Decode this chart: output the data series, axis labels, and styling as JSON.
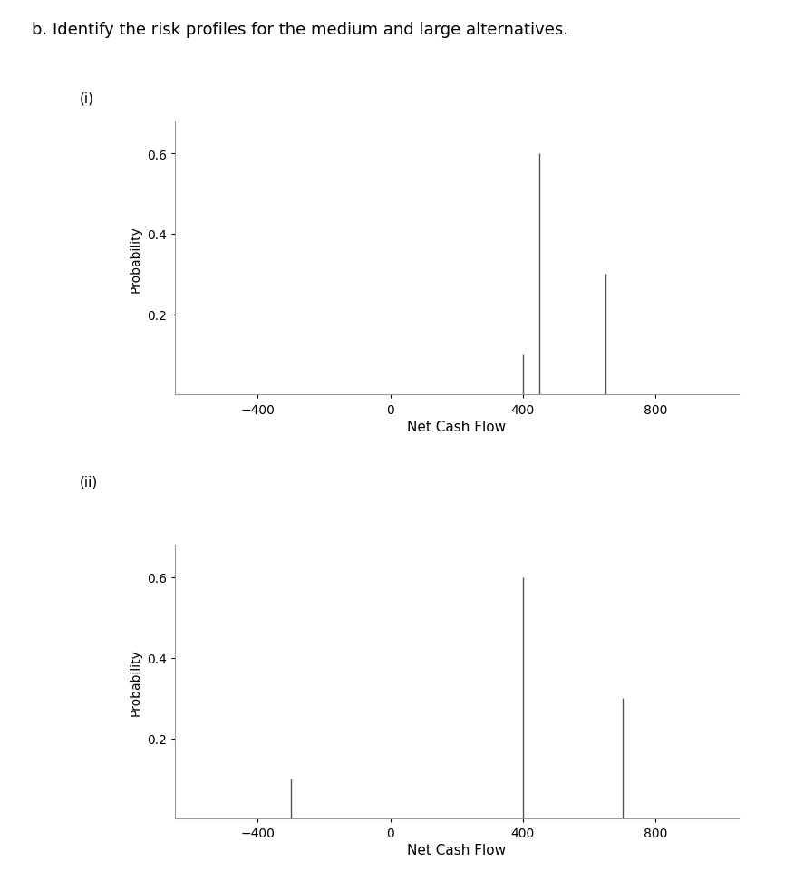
{
  "title": "b. Identify the risk profiles for the medium and large alternatives.",
  "chart_i_label": "(i)",
  "chart_ii_label": "(ii)",
  "chart_i": {
    "x_values": [
      400,
      450,
      650
    ],
    "probabilities": [
      0.1,
      0.6,
      0.3
    ],
    "xlabel": "Net Cash Flow",
    "ylabel": "Probability",
    "xlim": [
      -650,
      1050
    ],
    "ylim": [
      0,
      0.68
    ],
    "xticks": [
      -400,
      0,
      400,
      800
    ],
    "yticks": [
      0.2,
      0.4,
      0.6
    ]
  },
  "chart_ii": {
    "x_values": [
      -300,
      400,
      700
    ],
    "probabilities": [
      0.1,
      0.6,
      0.3
    ],
    "xlabel": "Net Cash Flow",
    "ylabel": "Probability",
    "xlim": [
      -650,
      1050
    ],
    "ylim": [
      0,
      0.68
    ],
    "xticks": [
      -400,
      0,
      400,
      800
    ],
    "yticks": [
      0.2,
      0.4,
      0.6
    ]
  },
  "line_color": "#555555",
  "line_width": 1.0,
  "background_color": "#ffffff",
  "title_fontsize": 13,
  "label_fontsize": 11,
  "tick_fontsize": 10,
  "ylabel_fontsize": 10,
  "sublabel_fontsize": 11
}
